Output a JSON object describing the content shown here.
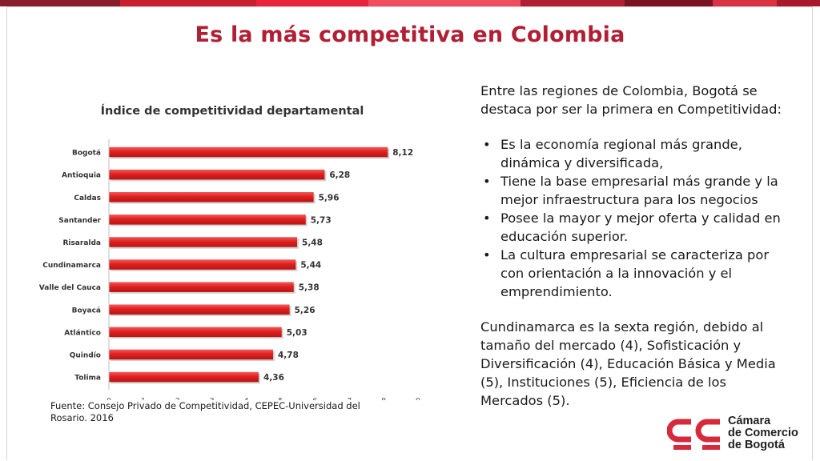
{
  "slide": {
    "title": "Es la más competitiva en Colombia",
    "source": "Fuente: Consejo Privado de Competitividad, CEPEC-Universidad del Rosario. 2016"
  },
  "right_panel": {
    "intro": "Entre las regiones de Colombia, Bogotá se destaca por ser la primera en Competitividad:",
    "bullet_symbol": "•",
    "bullets": [
      "Es la economía regional más grande, dinámica y diversificada,",
      "Tiene la base empresarial más grande y la mejor infraestructura para los negocios",
      "Posee la mayor y mejor oferta y calidad en educación superior.",
      "La cultura empresarial se caracteriza por con orientación a la innovación y el emprendimiento."
    ],
    "closing": "Cundinamarca es la sexta región, debido al tamaño del mercado (4), Sofisticación y Diversificación (4), Educación Básica y Media  (5), Instituciones (5), Eficiencia de los Mercados  (5)."
  },
  "logo": {
    "line1": "Cámara",
    "line2": "de Comercio",
    "line3": "de Bogotá"
  },
  "colors": {
    "accent": "#b01f33",
    "bar": "#e02020",
    "topbar": [
      "#8a1d2c",
      "#c8202f",
      "#e8253a",
      "#f04e5e",
      "#b01f33",
      "#7a1322",
      "#d93242",
      "#a8192b"
    ]
  },
  "chart_data": {
    "type": "bar",
    "orientation": "horizontal",
    "title": "Índice de competitividad departamental",
    "categories": [
      "Bogotá",
      "Antioquia",
      "Caldas",
      "Santander",
      "Risaralda",
      "Cundinamarca",
      "Valle del Cauca",
      "Boyacá",
      "Atlántico",
      "Quindío",
      "Tolima"
    ],
    "values": [
      8.12,
      6.28,
      5.96,
      5.73,
      5.48,
      5.44,
      5.38,
      5.26,
      5.03,
      4.78,
      4.36
    ],
    "value_labels": [
      "8,12",
      "6,28",
      "5,96",
      "5,73",
      "5,48",
      "5,44",
      "5,38",
      "5,26",
      "5,03",
      "4,78",
      "4,36"
    ],
    "xlim": [
      0,
      9
    ],
    "xticks": [
      "0",
      "1",
      "2",
      "3",
      "4",
      "5",
      "6",
      "7",
      "8",
      "9"
    ],
    "xlabel": "",
    "ylabel": "",
    "grid": false,
    "legend": "none"
  }
}
